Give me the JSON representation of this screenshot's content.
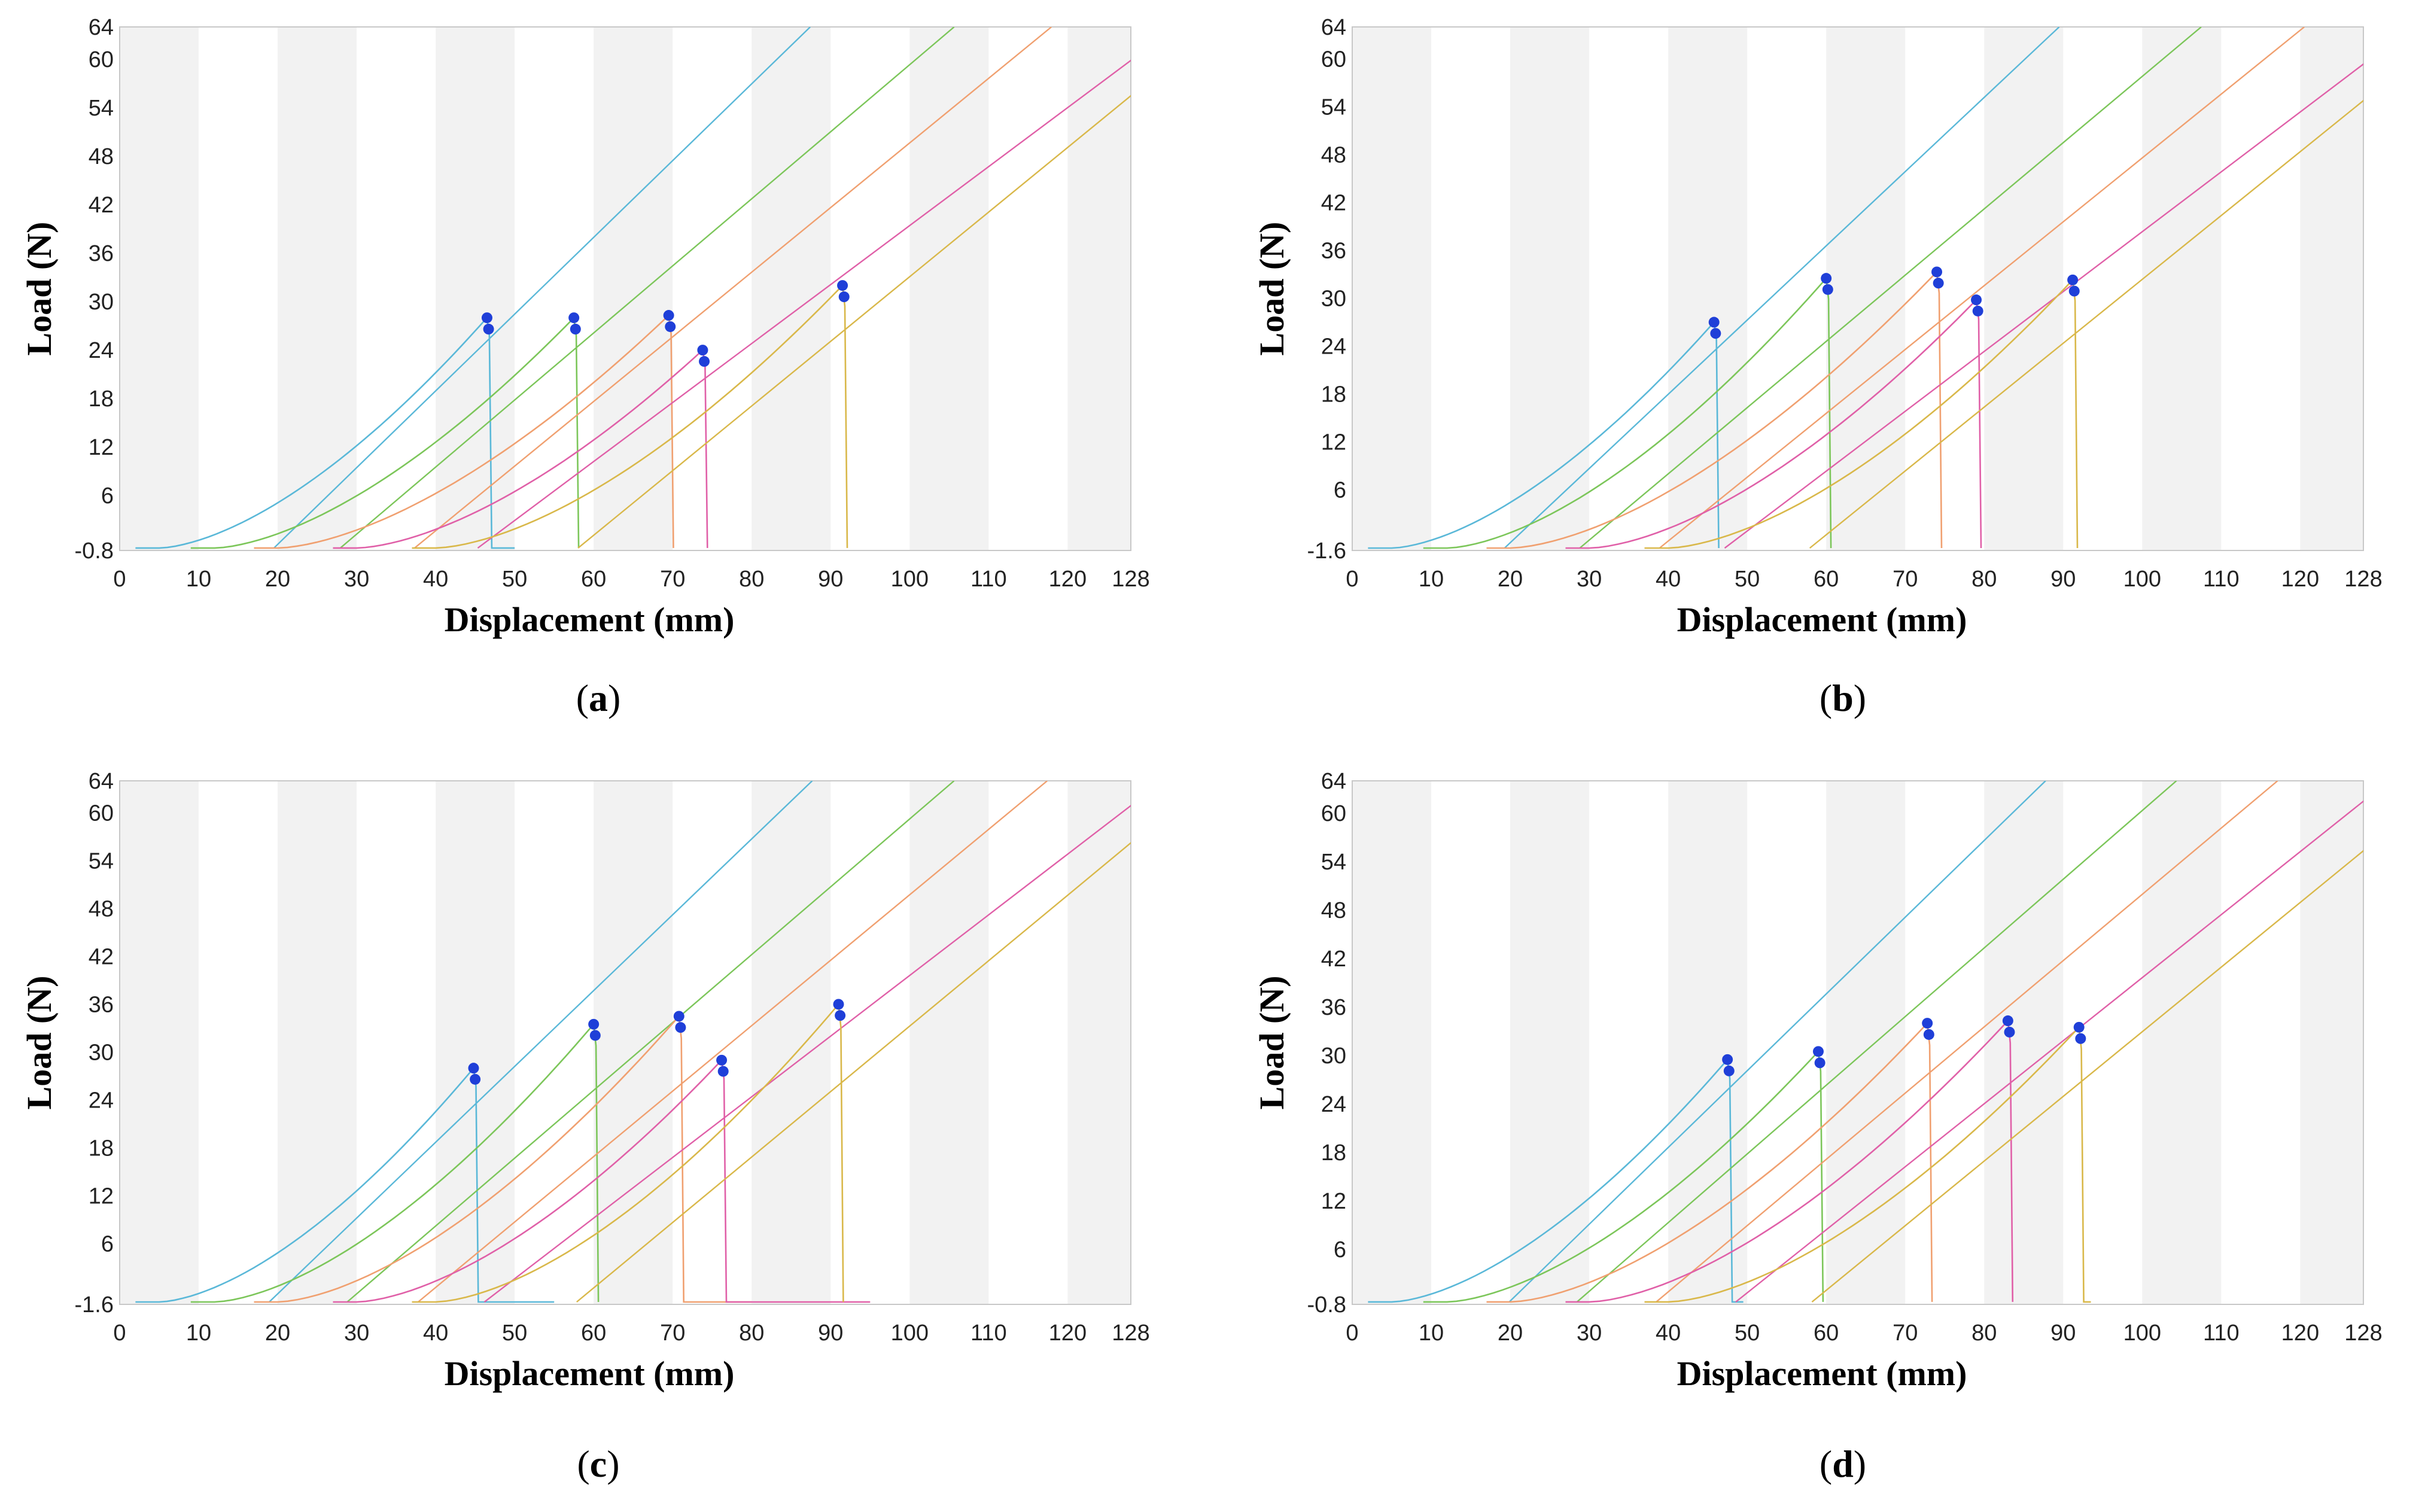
{
  "chart_data": [
    {
      "type": "line",
      "panel": "a",
      "xlabel": "Displacement (mm)",
      "ylabel": "Load (N)",
      "xlim": [
        0,
        128
      ],
      "ylim": [
        -0.8,
        64
      ],
      "xticks": [
        0,
        10,
        20,
        30,
        40,
        50,
        60,
        70,
        80,
        90,
        100,
        110,
        120,
        128
      ],
      "yticks": [
        -0.8,
        6,
        12,
        18,
        24,
        30,
        36,
        42,
        48,
        54,
        60,
        64
      ],
      "ytick_labels": [
        "-0.8",
        "6",
        "12",
        "18",
        "24",
        "30",
        "36",
        "42",
        "48",
        "54",
        "60",
        "64"
      ],
      "grid": "alternating-vertical-bands",
      "series": [
        {
          "color": "#5ab8d8",
          "start": 5,
          "toe": 10,
          "break_x": 46.5,
          "peak": 28,
          "slope": 0.95,
          "drop_to": 50
        },
        {
          "color": "#7cc65a",
          "start": 12,
          "toe": 11,
          "break_x": 57.5,
          "peak": 28,
          "slope": 0.83,
          "drop_to": 57.5
        },
        {
          "color": "#f0a070",
          "start": 20,
          "toe": 12,
          "break_x": 69.5,
          "peak": 28.3,
          "slope": 0.8,
          "drop_to": 69.5
        },
        {
          "color": "#e060a8",
          "start": 30,
          "toe": 13,
          "break_x": 73.8,
          "peak": 24,
          "slope": 0.73,
          "drop_to": 73.8
        },
        {
          "color": "#d9b84a",
          "start": 40,
          "toe": 14,
          "break_x": 91.5,
          "peak": 32,
          "slope": 0.8,
          "drop_to": 91.5
        }
      ]
    },
    {
      "type": "line",
      "panel": "b",
      "xlabel": "Displacement (mm)",
      "ylabel": "Load (N)",
      "xlim": [
        0,
        128
      ],
      "ylim": [
        -1.6,
        64
      ],
      "xticks": [
        0,
        10,
        20,
        30,
        40,
        50,
        60,
        70,
        80,
        90,
        100,
        110,
        120,
        128
      ],
      "yticks": [
        -1.6,
        6,
        12,
        18,
        24,
        30,
        36,
        42,
        48,
        54,
        60,
        64
      ],
      "ytick_labels": [
        "-1.6",
        "6",
        "12",
        "18",
        "24",
        "30",
        "36",
        "42",
        "48",
        "54",
        "60",
        "64"
      ],
      "grid": "alternating-vertical-bands",
      "series": [
        {
          "color": "#5ab8d8",
          "start": 5,
          "toe": 10,
          "break_x": 45.8,
          "peak": 27,
          "slope": 0.93,
          "drop_to": 45.8
        },
        {
          "color": "#7cc65a",
          "start": 12,
          "toe": 11,
          "break_x": 60,
          "peak": 32.5,
          "slope": 0.83,
          "drop_to": 60
        },
        {
          "color": "#f0a070",
          "start": 20,
          "toe": 12,
          "break_x": 74,
          "peak": 33.3,
          "slope": 0.8,
          "drop_to": 74
        },
        {
          "color": "#e060a8",
          "start": 30,
          "toe": 13,
          "break_x": 79,
          "peak": 29.8,
          "slope": 0.75,
          "drop_to": 79
        },
        {
          "color": "#d9b84a",
          "start": 40,
          "toe": 14,
          "break_x": 91.2,
          "peak": 32.3,
          "slope": 0.8,
          "drop_to": 91.2
        }
      ]
    },
    {
      "type": "line",
      "panel": "c",
      "xlabel": "Displacement (mm)",
      "ylabel": "Load (N)",
      "xlim": [
        0,
        128
      ],
      "ylim": [
        -1.6,
        64
      ],
      "xticks": [
        0,
        10,
        20,
        30,
        40,
        50,
        60,
        70,
        80,
        90,
        100,
        110,
        120,
        128
      ],
      "yticks": [
        -1.6,
        6,
        12,
        18,
        24,
        30,
        36,
        42,
        48,
        54,
        60,
        64
      ],
      "ytick_labels": [
        "-1.6",
        "6",
        "12",
        "18",
        "24",
        "30",
        "36",
        "42",
        "48",
        "54",
        "60",
        "64"
      ],
      "grid": "alternating-vertical-bands",
      "series": [
        {
          "color": "#5ab8d8",
          "start": 5,
          "toe": 10,
          "break_x": 44.8,
          "peak": 28,
          "slope": 0.95,
          "drop_to": 55
        },
        {
          "color": "#7cc65a",
          "start": 12,
          "toe": 11,
          "break_x": 60,
          "peak": 33.5,
          "slope": 0.85,
          "drop_to": 60.5
        },
        {
          "color": "#f0a070",
          "start": 20,
          "toe": 12,
          "break_x": 70.8,
          "peak": 34.5,
          "slope": 0.82,
          "drop_to": 80
        },
        {
          "color": "#e060a8",
          "start": 30,
          "toe": 13,
          "break_x": 76.2,
          "peak": 29,
          "slope": 0.76,
          "drop_to": 95
        },
        {
          "color": "#d9b84a",
          "start": 40,
          "toe": 14,
          "break_x": 91,
          "peak": 36,
          "slope": 0.82,
          "drop_to": 91
        }
      ]
    },
    {
      "type": "line",
      "panel": "d",
      "xlabel": "Displacement (mm)",
      "ylabel": "Load (N)",
      "xlim": [
        0,
        128
      ],
      "ylim": [
        -0.8,
        64
      ],
      "xticks": [
        0,
        10,
        20,
        30,
        40,
        50,
        60,
        70,
        80,
        90,
        100,
        110,
        120,
        128
      ],
      "yticks": [
        -0.8,
        6,
        12,
        18,
        24,
        30,
        36,
        42,
        48,
        54,
        60,
        64
      ],
      "ytick_labels": [
        "-0.8",
        "6",
        "12",
        "18",
        "24",
        "30",
        "36",
        "42",
        "48",
        "54",
        "60",
        "64"
      ],
      "grid": "alternating-vertical-bands",
      "series": [
        {
          "color": "#5ab8d8",
          "start": 5,
          "toe": 10,
          "break_x": 47.5,
          "peak": 29.5,
          "slope": 0.95,
          "drop_to": 49.5
        },
        {
          "color": "#7cc65a",
          "start": 12,
          "toe": 11,
          "break_x": 59,
          "peak": 30.5,
          "slope": 0.85,
          "drop_to": 59
        },
        {
          "color": "#f0a070",
          "start": 20,
          "toe": 12,
          "break_x": 72.8,
          "peak": 34,
          "slope": 0.82,
          "drop_to": 73
        },
        {
          "color": "#e060a8",
          "start": 30,
          "toe": 13,
          "break_x": 83,
          "peak": 34.3,
          "slope": 0.78,
          "drop_to": 83.5
        },
        {
          "color": "#d9b84a",
          "start": 40,
          "toe": 14,
          "break_x": 92,
          "peak": 33.5,
          "slope": 0.8,
          "drop_to": 93.5
        }
      ]
    }
  ],
  "captions": [
    "a",
    "b",
    "c",
    "d"
  ]
}
